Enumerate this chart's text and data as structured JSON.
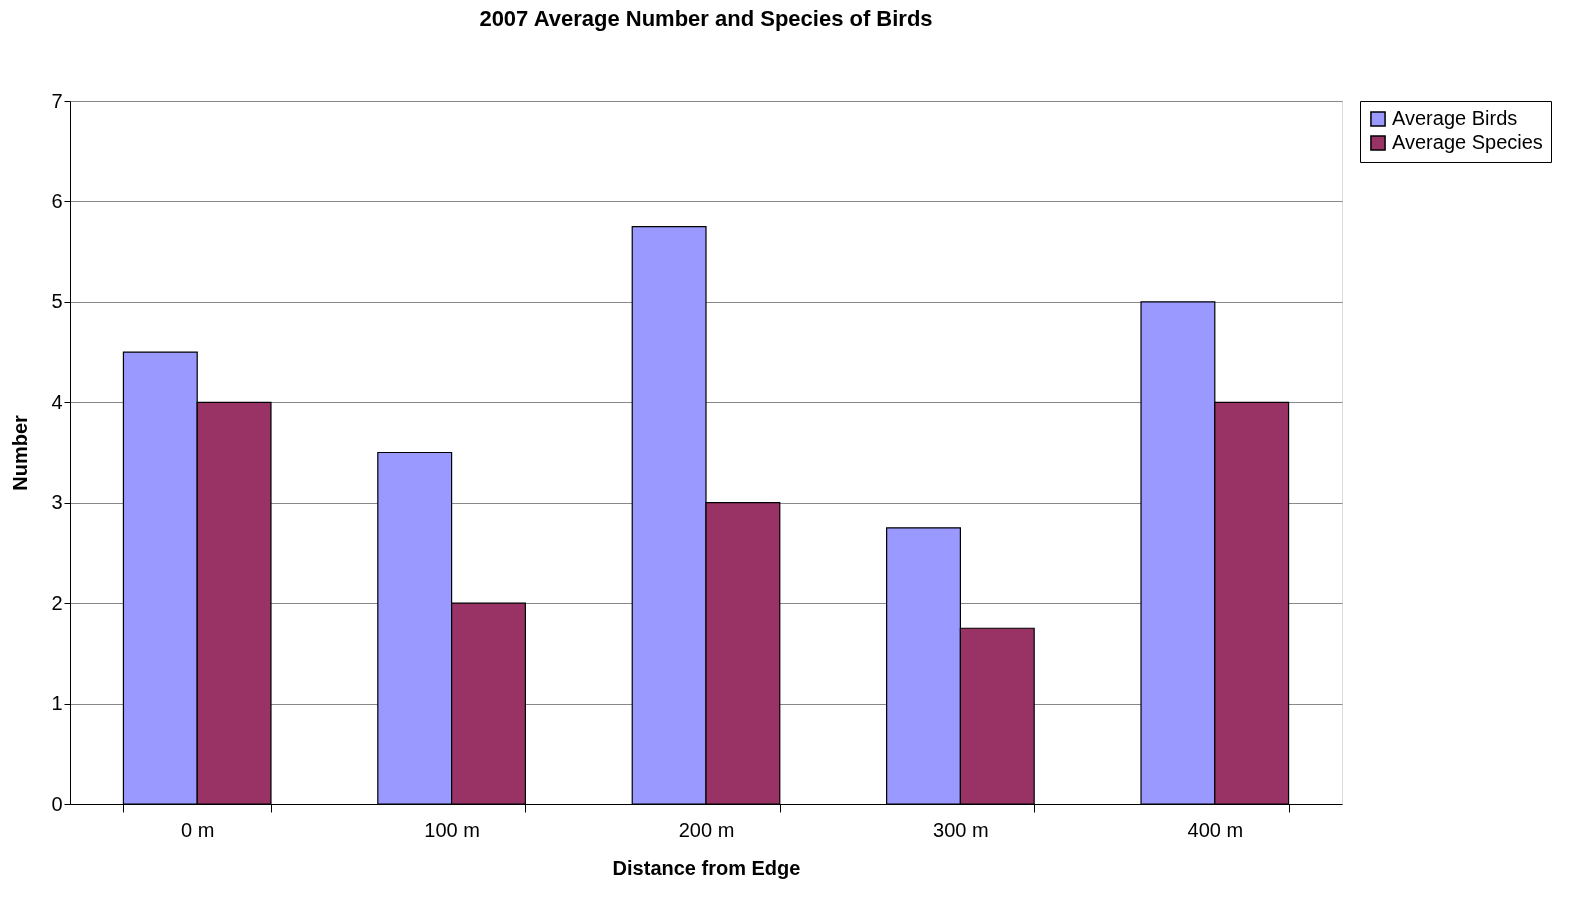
{
  "chart_data": {
    "type": "bar",
    "title": "2007 Average Number and Species of Birds",
    "xlabel": "Distance from Edge",
    "ylabel": "Number",
    "categories": [
      "0 m",
      "100 m",
      "200 m",
      "300 m",
      "400 m"
    ],
    "series": [
      {
        "name": "Average Birds",
        "color": "#9999ff",
        "values": [
          4.5,
          3.5,
          5.75,
          2.75,
          5
        ]
      },
      {
        "name": "Average Species",
        "color": "#993366",
        "values": [
          4,
          2,
          3,
          1.75,
          4
        ]
      }
    ],
    "ylim": [
      0,
      7
    ],
    "yticks": [
      0,
      1,
      2,
      3,
      4,
      5,
      6,
      7
    ],
    "grid": "y",
    "legend": "right"
  }
}
